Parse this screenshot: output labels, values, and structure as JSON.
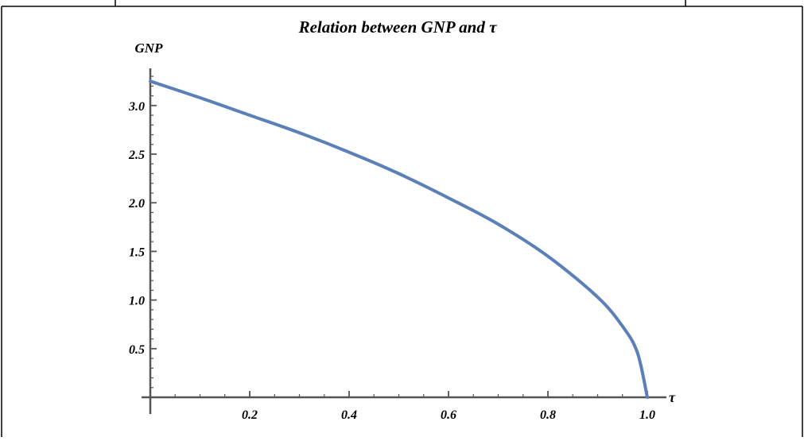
{
  "chart_data": {
    "type": "line",
    "title": "Relation between GNP and τ",
    "xlabel": "τ",
    "ylabel": "GNP",
    "xlim": [
      0.0,
      1.0
    ],
    "ylim": [
      0.0,
      3.3
    ],
    "x_ticks": [
      "0.2",
      "0.4",
      "0.6",
      "0.8",
      "1.0"
    ],
    "y_ticks": [
      "0.5",
      "1.0",
      "1.5",
      "2.0",
      "2.5",
      "3.0"
    ],
    "series": [
      {
        "color": "#5b7fb8",
        "x": [
          0.0,
          0.1,
          0.2,
          0.3,
          0.4,
          0.5,
          0.6,
          0.7,
          0.8,
          0.9,
          0.95,
          0.98,
          1.0
        ],
        "y": [
          3.25,
          3.08,
          2.9,
          2.72,
          2.52,
          2.3,
          2.05,
          1.78,
          1.45,
          1.03,
          0.73,
          0.46,
          0.0
        ]
      }
    ],
    "grid": false,
    "legend": "none"
  }
}
